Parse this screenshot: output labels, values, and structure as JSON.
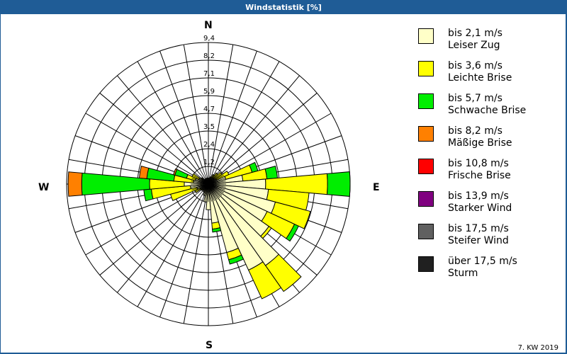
{
  "title": "Windstatistik [%]",
  "footer": "7. KW 2019",
  "compass": {
    "n": "N",
    "e": "E",
    "s": "S",
    "w": "W"
  },
  "legend": [
    {
      "range": "bis 2,1 m/s",
      "name": "Leiser Zug",
      "color": "#ffffc8"
    },
    {
      "range": "bis 3,6 m/s",
      "name": "Leichte Brise",
      "color": "#ffff00"
    },
    {
      "range": "bis 5,7 m/s",
      "name": "Schwache Brise",
      "color": "#00ee00"
    },
    {
      "range": "bis 8,2 m/s",
      "name": "Mäßige Brise",
      "color": "#ff8000"
    },
    {
      "range": "bis 10,8 m/s",
      "name": "Frische Brise",
      "color": "#ff0000"
    },
    {
      "range": "bis 13,9 m/s",
      "name": "Starker Wind",
      "color": "#800080"
    },
    {
      "range": "bis 17,5 m/s",
      "name": "Steifer Wind",
      "color": "#606060"
    },
    {
      "range": "über 17,5 m/s",
      "name": "Sturm",
      "color": "#202020"
    }
  ],
  "chart_data": {
    "type": "wind-rose",
    "title": "Windstatistik [%]",
    "ring_labels": [
      "1,2",
      "2,4",
      "3,5",
      "4,7",
      "5,9",
      "7,1",
      "8,2",
      "9,4"
    ],
    "rmax": 9.4,
    "sector_width_deg": 10,
    "series_names": [
      "bis 2,1 m/s",
      "bis 3,6 m/s",
      "bis 5,7 m/s",
      "bis 8,2 m/s"
    ],
    "sectors": [
      {
        "dir": 0,
        "cum": [
          0.4,
          0.4,
          0.4,
          0.4
        ]
      },
      {
        "dir": 10,
        "cum": [
          0.4,
          0.4,
          0.4,
          0.4
        ]
      },
      {
        "dir": 20,
        "cum": [
          0.4,
          0.5,
          0.5,
          0.5
        ]
      },
      {
        "dir": 30,
        "cum": [
          0.4,
          0.7,
          0.7,
          0.7
        ]
      },
      {
        "dir": 40,
        "cum": [
          0.5,
          0.9,
          0.9,
          0.9
        ]
      },
      {
        "dir": 50,
        "cum": [
          0.5,
          1.1,
          1.1,
          1.1
        ]
      },
      {
        "dir": 60,
        "cum": [
          0.6,
          1.5,
          1.5,
          1.5
        ]
      },
      {
        "dir": 70,
        "cum": [
          1.2,
          3.0,
          3.4,
          3.4
        ]
      },
      {
        "dir": 80,
        "cum": [
          2.3,
          3.9,
          4.6,
          4.6
        ]
      },
      {
        "dir": 90,
        "cum": [
          3.8,
          7.9,
          9.4,
          9.4
        ]
      },
      {
        "dir": 100,
        "cum": [
          4.0,
          6.7,
          6.7,
          6.7
        ]
      },
      {
        "dir": 110,
        "cum": [
          4.6,
          7.0,
          7.0,
          7.0
        ]
      },
      {
        "dir": 120,
        "cum": [
          4.3,
          6.3,
          6.6,
          6.6
        ]
      },
      {
        "dir": 130,
        "cum": [
          4.9,
          5.1,
          5.1,
          5.1
        ]
      },
      {
        "dir": 140,
        "cum": [
          6.6,
          8.7,
          8.7,
          8.7
        ]
      },
      {
        "dir": 150,
        "cum": [
          6.3,
          8.4,
          8.4,
          8.4
        ]
      },
      {
        "dir": 160,
        "cum": [
          4.7,
          5.2,
          5.5,
          5.5
        ]
      },
      {
        "dir": 170,
        "cum": [
          2.6,
          3.0,
          3.2,
          3.2
        ]
      },
      {
        "dir": 180,
        "cum": [
          1.7,
          1.7,
          1.7,
          1.7
        ]
      },
      {
        "dir": 190,
        "cum": [
          1.2,
          1.2,
          1.2,
          1.2
        ]
      },
      {
        "dir": 200,
        "cum": [
          0.8,
          0.8,
          0.8,
          0.8
        ]
      },
      {
        "dir": 210,
        "cum": [
          0.6,
          0.6,
          0.6,
          0.6
        ]
      },
      {
        "dir": 220,
        "cum": [
          0.5,
          0.5,
          0.5,
          0.5
        ]
      },
      {
        "dir": 230,
        "cum": [
          0.5,
          0.6,
          0.6,
          0.6
        ]
      },
      {
        "dir": 240,
        "cum": [
          0.6,
          1.0,
          1.0,
          1.0
        ]
      },
      {
        "dir": 250,
        "cum": [
          0.8,
          2.6,
          2.6,
          2.6
        ]
      },
      {
        "dir": 260,
        "cum": [
          1.2,
          3.8,
          4.3,
          4.3
        ]
      },
      {
        "dir": 270,
        "cum": [
          1.6,
          3.9,
          8.4,
          9.3
        ]
      },
      {
        "dir": 280,
        "cum": [
          1.0,
          2.3,
          4.1,
          4.6
        ]
      },
      {
        "dir": 290,
        "cum": [
          0.9,
          1.5,
          2.3,
          2.4
        ]
      },
      {
        "dir": 300,
        "cum": [
          0.7,
          1.2,
          1.2,
          1.2
        ]
      },
      {
        "dir": 310,
        "cum": [
          0.5,
          0.6,
          0.6,
          0.6
        ]
      },
      {
        "dir": 320,
        "cum": [
          0.4,
          0.4,
          0.4,
          0.4
        ]
      },
      {
        "dir": 330,
        "cum": [
          0.4,
          0.4,
          0.4,
          0.4
        ]
      },
      {
        "dir": 340,
        "cum": [
          0.4,
          0.4,
          0.4,
          0.4
        ]
      },
      {
        "dir": 350,
        "cum": [
          0.4,
          0.4,
          0.4,
          0.4
        ]
      }
    ],
    "legend_position": "right"
  }
}
